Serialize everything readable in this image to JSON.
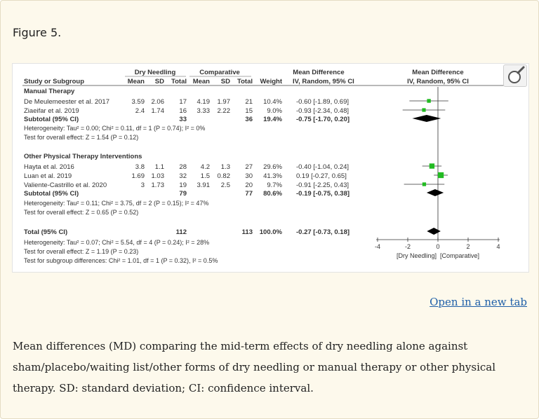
{
  "figure_label": "Figure 5.",
  "open_link_label": "Open in a new tab",
  "caption": "Mean differences (MD) comparing the mid-term effects of dry needling alone against sham/placebo/waiting list/other forms of dry needling or manual therapy or other physical therapy. SD: standard deviation; CI: confidence interval.",
  "colors": {
    "marker": "#22bb22",
    "diamond": "#000000",
    "link": "#1f5fa8"
  },
  "icons": {
    "zoom": "magnifier-icon"
  },
  "chart_data": {
    "type": "forest",
    "group_headers": {
      "experimental": "Dry Needling",
      "control": "Comparative",
      "effect_left": "Mean Difference",
      "effect_right": "Mean Difference"
    },
    "columns": {
      "study": "Study or Subgroup",
      "mean1": "Mean",
      "sd1": "SD",
      "total1": "Total",
      "mean2": "Mean",
      "sd2": "SD",
      "total2": "Total",
      "weight": "Weight",
      "ci_left": "IV, Random, 95% CI",
      "ci_right": "IV, Random, 95% CI"
    },
    "subgroups": [
      {
        "name": "Manual Therapy",
        "studies": [
          {
            "label": "De Meulemeester et al. 2017",
            "mean1": "3.59",
            "sd1": "2.06",
            "total1": "17",
            "mean2": "4.19",
            "sd2": "1.97",
            "total2": "21",
            "weight": "10.4%",
            "ci": "-0.60 [-1.89, 0.69]",
            "md": -0.6,
            "lo": -1.89,
            "hi": 0.69,
            "w": 10.4
          },
          {
            "label": "Ziaeifar et al. 2019",
            "mean1": "2.4",
            "sd1": "1.74",
            "total1": "16",
            "mean2": "3.33",
            "sd2": "2.22",
            "total2": "15",
            "weight": "9.0%",
            "ci": "-0.93 [-2.34, 0.48]",
            "md": -0.93,
            "lo": -2.34,
            "hi": 0.48,
            "w": 9.0
          }
        ],
        "subtotal": {
          "label": "Subtotal (95% CI)",
          "total1": "33",
          "total2": "36",
          "weight": "19.4%",
          "ci": "-0.75 [-1.70, 0.20]",
          "md": -0.75,
          "lo": -1.7,
          "hi": 0.2
        },
        "heterogeneity": "Heterogeneity: Tau² = 0.00; Chi² = 0.11, df = 1 (P = 0.74); I² = 0%",
        "overall": "Test for overall effect: Z = 1.54 (P = 0.12)"
      },
      {
        "name": "Other Physical Therapy Interventions",
        "studies": [
          {
            "label": "Hayta et al. 2016",
            "mean1": "3.8",
            "sd1": "1.1",
            "total1": "28",
            "mean2": "4.2",
            "sd2": "1.3",
            "total2": "27",
            "weight": "29.6%",
            "ci": "-0.40 [-1.04, 0.24]",
            "md": -0.4,
            "lo": -1.04,
            "hi": 0.24,
            "w": 29.6
          },
          {
            "label": "Luan et al. 2019",
            "mean1": "1.69",
            "sd1": "1.03",
            "total1": "32",
            "mean2": "1.5",
            "sd2": "0.82",
            "total2": "30",
            "weight": "41.3%",
            "ci": "0.19 [-0.27, 0.65]",
            "md": 0.19,
            "lo": -0.27,
            "hi": 0.65,
            "w": 41.3
          },
          {
            "label": "Valiente-Castrillo et al. 2020",
            "mean1": "3",
            "sd1": "1.73",
            "total1": "19",
            "mean2": "3.91",
            "sd2": "2.5",
            "total2": "20",
            "weight": "9.7%",
            "ci": "-0.91 [-2.25, 0.43]",
            "md": -0.91,
            "lo": -2.25,
            "hi": 0.43,
            "w": 9.7
          }
        ],
        "subtotal": {
          "label": "Subtotal (95% CI)",
          "total1": "79",
          "total2": "77",
          "weight": "80.6%",
          "ci": "-0.19 [-0.75, 0.38]",
          "md": -0.19,
          "lo": -0.75,
          "hi": 0.38
        },
        "heterogeneity": "Heterogeneity: Tau² = 0.11; Chi² = 3.75, df = 2 (P = 0.15); I² = 47%",
        "overall": "Test for overall effect: Z = 0.65 (P = 0.52)"
      }
    ],
    "total": {
      "label": "Total (95% CI)",
      "total1": "112",
      "total2": "113",
      "weight": "100.0%",
      "ci": "-0.27 [-0.73, 0.18]",
      "md": -0.27,
      "lo": -0.73,
      "hi": 0.18
    },
    "total_notes": [
      "Heterogeneity: Tau² = 0.07; Chi² = 5.54, df = 4 (P = 0.24); I² = 28%",
      "Test for overall effect: Z = 1.19 (P = 0.23)",
      "Test for subgroup differences: Chi² = 1.01, df = 1 (P = 0.32), I² = 0.5%"
    ],
    "x_ticks": [
      -4,
      -2,
      0,
      2,
      4
    ],
    "x_range": [
      -4,
      4
    ],
    "favours": "[Dry Needling]  [Comparative]"
  }
}
